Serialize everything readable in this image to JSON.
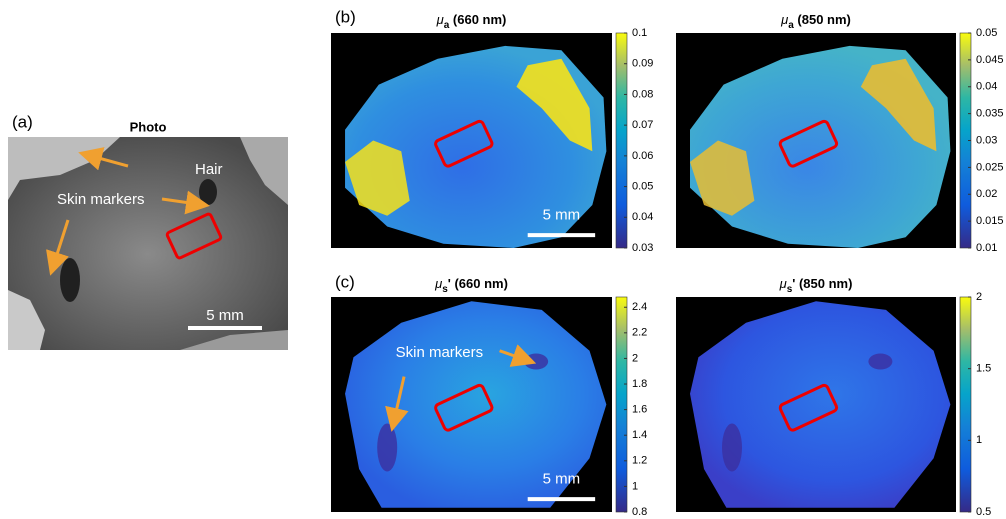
{
  "photo": {
    "label": "(a)",
    "title": "Photo",
    "annotations": {
      "hair": "Hair",
      "markers": "Skin markers"
    },
    "scale_bar": "5 mm"
  },
  "row_b": {
    "label": "(b)",
    "maps": [
      {
        "title": {
          "symbol": "μ",
          "subscript": "a",
          "suffix": " (660 nm)"
        },
        "scale_bar": "5 mm",
        "colorbar": {
          "lim": [
            0.03,
            0.1
          ],
          "ticks": [
            0.1,
            0.09,
            0.08,
            0.07,
            0.06,
            0.05,
            0.04,
            0.03
          ]
        }
      },
      {
        "title": {
          "symbol": "μ",
          "subscript": "a",
          "suffix": " (850 nm)"
        },
        "colorbar": {
          "lim": [
            0.01,
            0.05
          ],
          "ticks": [
            0.05,
            0.045,
            0.04,
            0.035,
            0.03,
            0.025,
            0.02,
            0.015,
            0.01
          ]
        }
      }
    ]
  },
  "row_c": {
    "label": "(c)",
    "maps": [
      {
        "title": {
          "symbol": "μ",
          "subscript": "s",
          "suffix": "' (660 nm)"
        },
        "annotation": "Skin markers",
        "scale_bar": "5 mm",
        "colorbar": {
          "lim": [
            0.8,
            2.48
          ],
          "ticks": [
            2.4,
            2.2,
            2,
            1.8,
            1.6,
            1.4,
            1.2,
            1,
            0.8
          ]
        }
      },
      {
        "title": {
          "symbol": "μ",
          "subscript": "s",
          "suffix": "' (850 nm)"
        },
        "colorbar": {
          "lim": [
            0.5,
            2
          ],
          "ticks": [
            2,
            1.5,
            1,
            0.5
          ]
        }
      }
    ]
  }
}
